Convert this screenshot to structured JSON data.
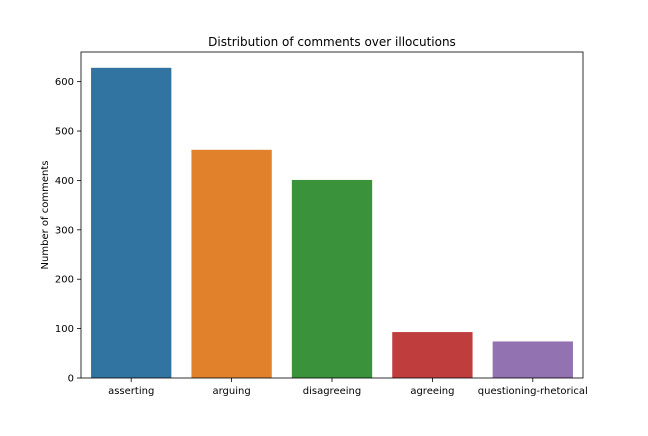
{
  "chart_data": {
    "type": "bar",
    "title": "Distribution of comments over illocutions",
    "xlabel": "",
    "ylabel": "Number of comments",
    "categories": [
      "asserting",
      "arguing",
      "disagreeing",
      "agreeing",
      "questioning-rhetorical"
    ],
    "values": [
      628,
      462,
      401,
      93,
      74
    ],
    "colors": [
      "#3274a1",
      "#e1812c",
      "#3a923a",
      "#c03d3e",
      "#9372b2"
    ],
    "yticks": [
      0,
      100,
      200,
      300,
      400,
      500,
      600
    ],
    "ylim": [
      0,
      660
    ],
    "grid": false,
    "legend": "none"
  }
}
